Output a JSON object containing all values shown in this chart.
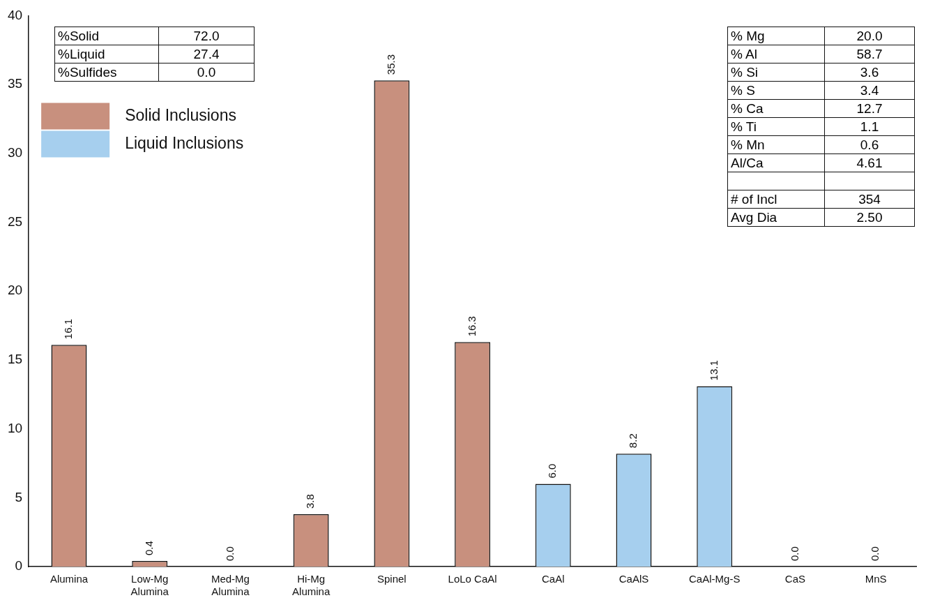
{
  "chart_data": {
    "type": "bar",
    "categories": [
      "Alumina",
      "Low-Mg Alumina",
      "Med-Mg Alumina",
      "Hi-Mg Alumina",
      "Spinel",
      "LoLo CaAl",
      "CaAl",
      "CaAlS",
      "CaAl-Mg-S",
      "CaS",
      "MnS"
    ],
    "series": [
      {
        "name": "Solid Inclusions",
        "color": "#c8907e",
        "values": [
          16.1,
          0.4,
          0.0,
          3.8,
          35.3,
          16.3,
          null,
          null,
          null,
          null,
          null
        ],
        "value_labels": [
          "16.1",
          "0.4",
          "0.0",
          "3.8",
          "35.3",
          "16.3",
          null,
          null,
          null,
          null,
          null
        ]
      },
      {
        "name": "Liquid Inclusions",
        "color": "#a6cfee",
        "values": [
          null,
          null,
          null,
          null,
          null,
          null,
          6.0,
          8.2,
          13.1,
          0.0,
          0.0
        ],
        "value_labels": [
          null,
          null,
          null,
          null,
          null,
          null,
          "6.0",
          "8.2",
          "13.1",
          "0.0",
          "0.0"
        ]
      }
    ],
    "ylim": [
      0,
      40
    ],
    "yticks": [
      0,
      5,
      10,
      15,
      20,
      25,
      30,
      35,
      40
    ],
    "grid": false,
    "legend": "top left",
    "annotations": [
      "%Solid",
      "72.0",
      "%Liquid",
      "27.4",
      "%Sulfides",
      "0.0",
      "% Mg",
      "20.0",
      "% Al",
      "58.7",
      "% Si",
      "3.6",
      "% S",
      "3.4",
      "% Ca",
      "12.7",
      "% Ti",
      "1.1",
      "% Mn",
      "0.6",
      "Al/Ca",
      "4.61",
      "# of Incl",
      "354",
      "Avg Dia",
      "2.50"
    ]
  }
}
